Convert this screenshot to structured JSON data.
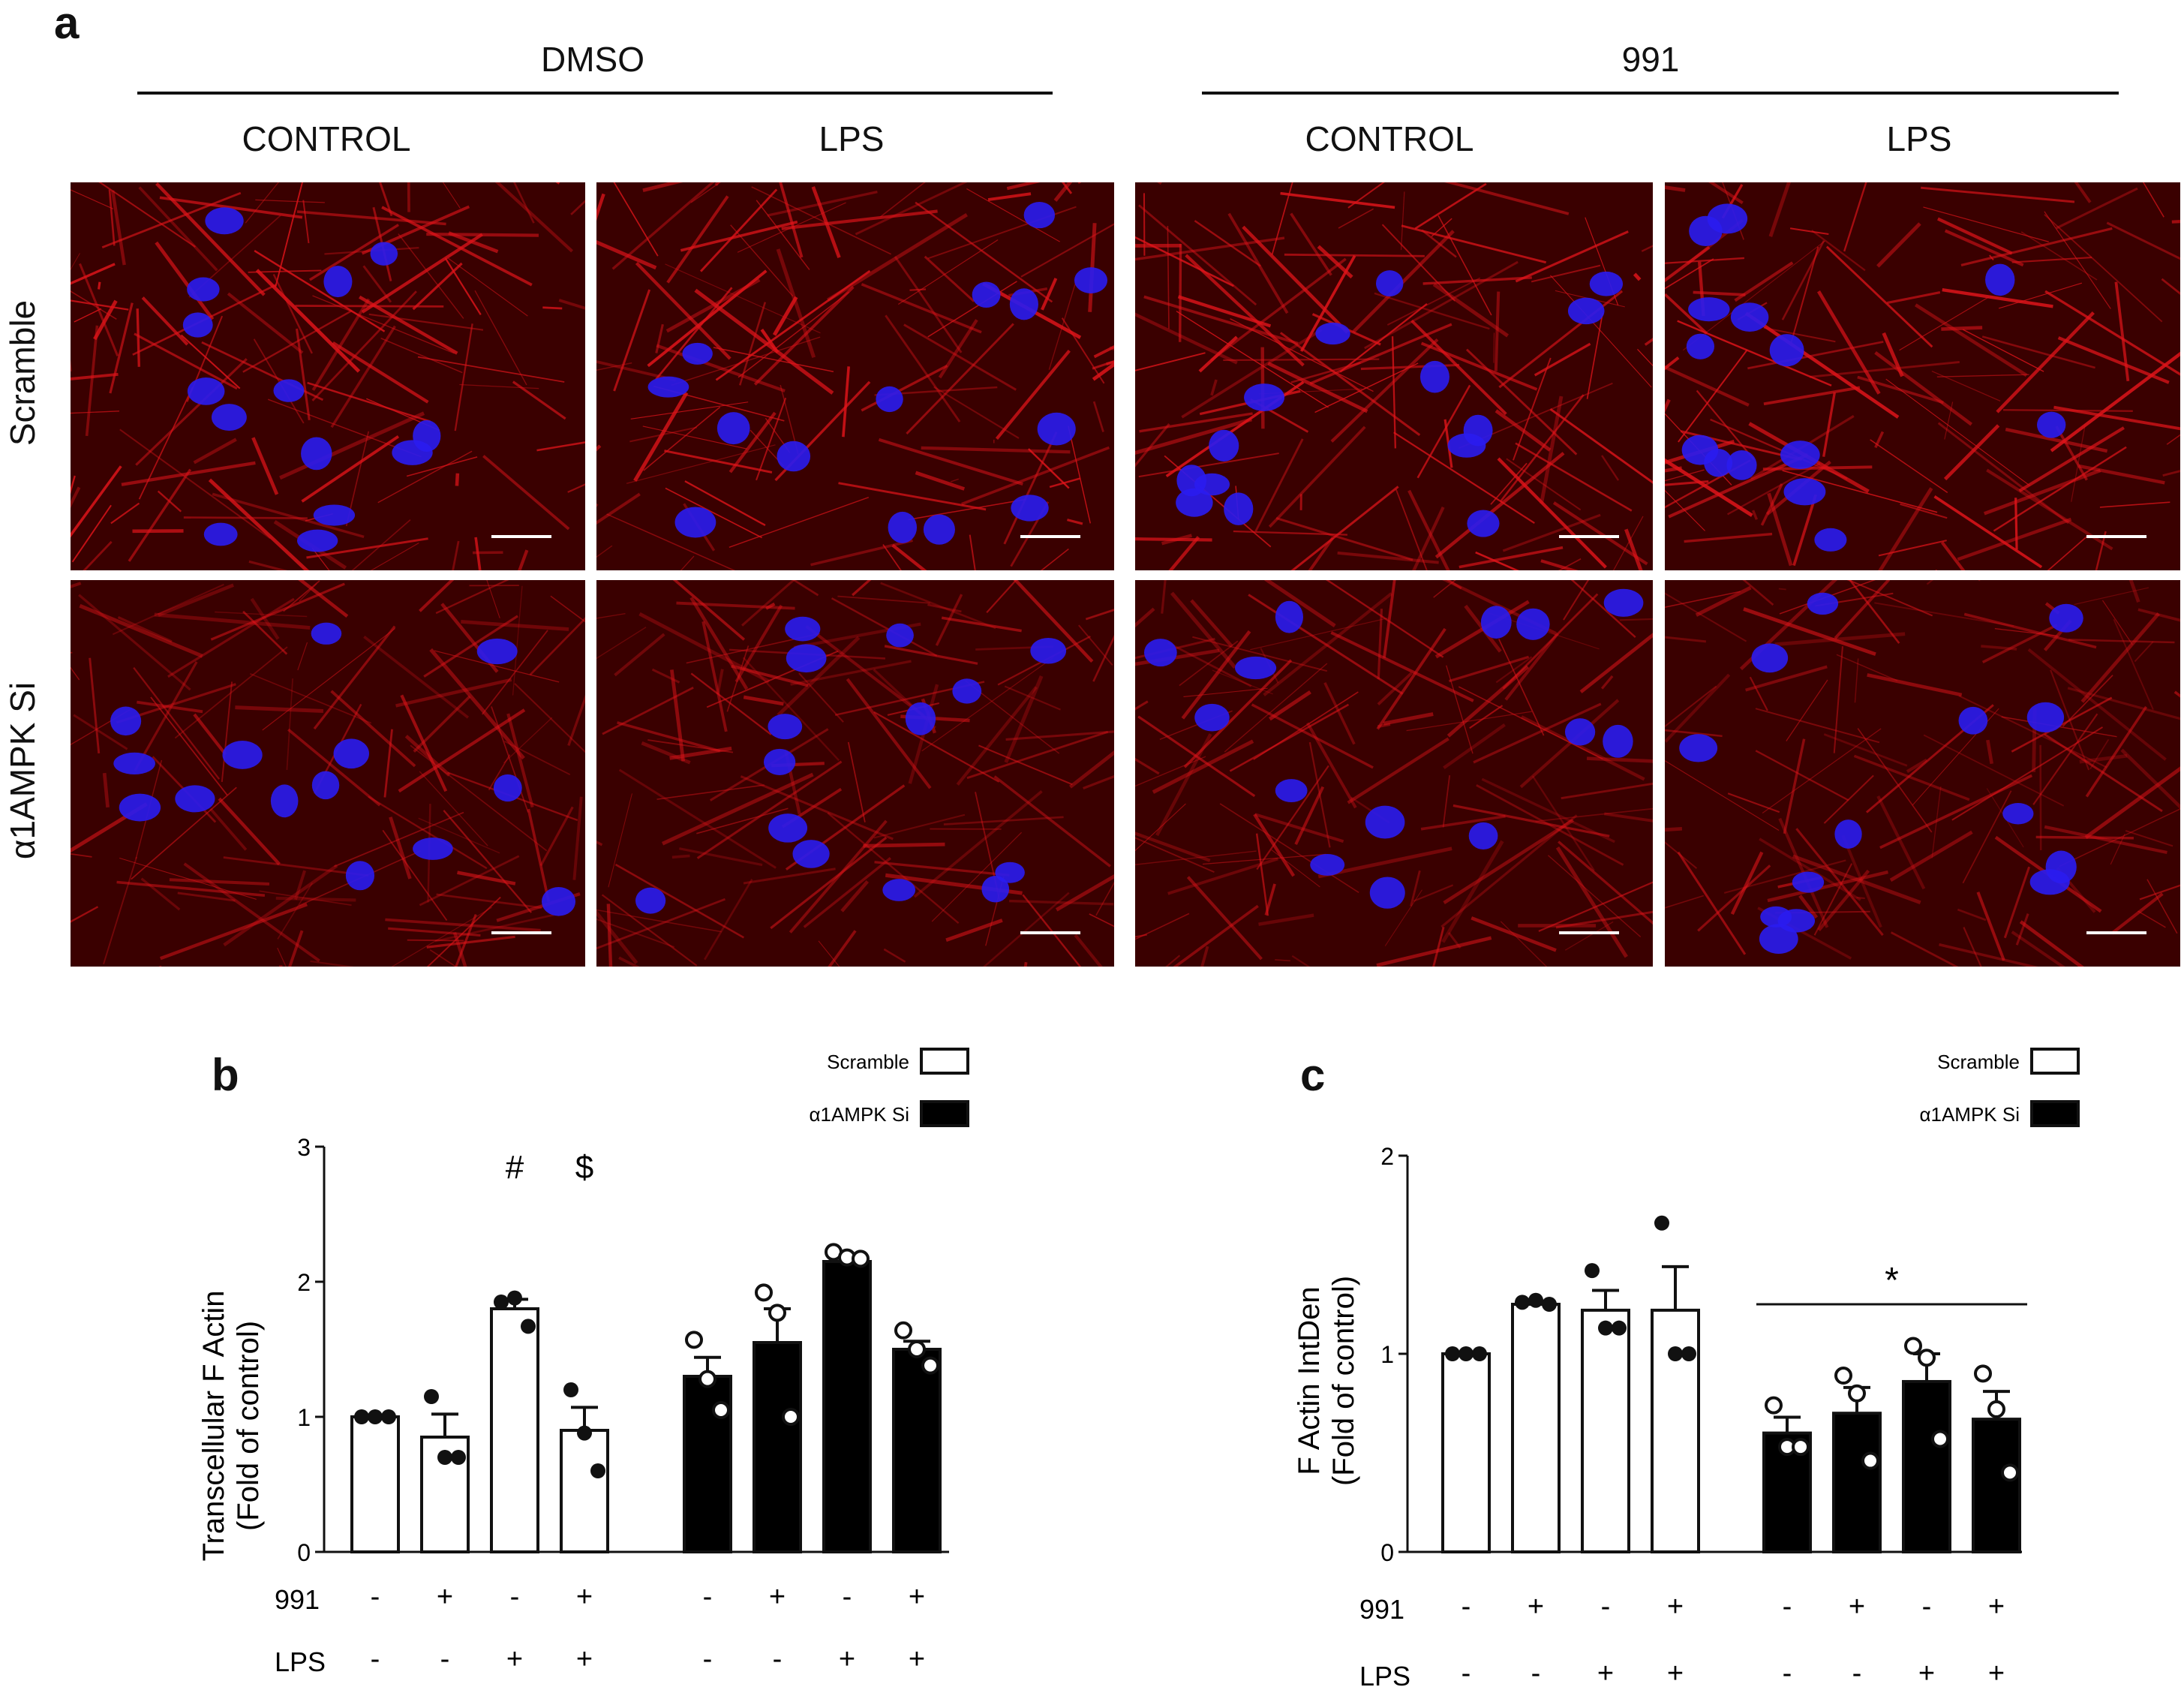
{
  "panel_a": {
    "letter": "a",
    "groups": [
      "DMSO",
      "991"
    ],
    "conditions": [
      "CONTROL",
      "LPS",
      "CONTROL",
      "LPS"
    ],
    "rows": [
      "Scramble",
      "α1AMPK Si"
    ],
    "colors": {
      "actin": "#e0141a",
      "nuclei": "#2a1cf0",
      "background": "#3a0000"
    }
  },
  "chart_data": [
    {
      "panel": "b",
      "type": "bar",
      "ylabel": "Transcellular F Actin\n(Fold of control)",
      "ylim": [
        0,
        3
      ],
      "yticks": [
        0,
        1,
        2,
        3
      ],
      "legend": [
        {
          "name": "Scramble",
          "fill": "#ffffff"
        },
        {
          "name": "α1AMPK Si",
          "fill": "#000000"
        }
      ],
      "legend_position": "top-right",
      "row_labels": [
        "991",
        "LPS"
      ],
      "series": [
        {
          "name": "Scramble",
          "fill": "#ffffff",
          "bars": [
            {
              "value": 1.0,
              "sem": 0.0,
              "points": [
                1.0,
                1.0,
                1.0
              ],
              "991": "-",
              "LPS": "-",
              "annotation": ""
            },
            {
              "value": 0.85,
              "sem": 0.17,
              "points": [
                1.15,
                0.7,
                0.7
              ],
              "991": "+",
              "LPS": "-",
              "annotation": ""
            },
            {
              "value": 1.8,
              "sem": 0.07,
              "points": [
                1.85,
                1.88,
                1.67
              ],
              "991": "-",
              "LPS": "+",
              "annotation": "#"
            },
            {
              "value": 0.9,
              "sem": 0.17,
              "points": [
                1.2,
                0.88,
                0.6
              ],
              "991": "+",
              "LPS": "+",
              "annotation": "$"
            }
          ]
        },
        {
          "name": "α1AMPK Si",
          "fill": "#000000",
          "bars": [
            {
              "value": 1.3,
              "sem": 0.14,
              "points": [
                1.57,
                1.28,
                1.05
              ],
              "991": "-",
              "LPS": "-",
              "annotation": ""
            },
            {
              "value": 1.55,
              "sem": 0.25,
              "points": [
                1.92,
                1.77,
                1.0
              ],
              "991": "+",
              "LPS": "-",
              "annotation": ""
            },
            {
              "value": 2.15,
              "sem": 0.04,
              "points": [
                2.22,
                2.18,
                2.17
              ],
              "991": "-",
              "LPS": "+",
              "annotation": ""
            },
            {
              "value": 1.5,
              "sem": 0.06,
              "points": [
                1.64,
                1.5,
                1.38
              ],
              "991": "+",
              "LPS": "+",
              "annotation": ""
            }
          ]
        }
      ]
    },
    {
      "panel": "c",
      "type": "bar",
      "ylabel": "F Actin IntDen\n(Fold of control)",
      "ylim": [
        0,
        2
      ],
      "yticks": [
        0,
        1,
        2
      ],
      "legend": [
        {
          "name": "Scramble",
          "fill": "#ffffff"
        },
        {
          "name": "α1AMPK Si",
          "fill": "#000000"
        }
      ],
      "legend_position": "top-right",
      "row_labels": [
        "991",
        "LPS"
      ],
      "significance": {
        "label": "*",
        "span": "α1AMPK Si"
      },
      "series": [
        {
          "name": "Scramble",
          "fill": "#ffffff",
          "bars": [
            {
              "value": 1.0,
              "sem": 0.0,
              "points": [
                1.0,
                1.0,
                1.0
              ],
              "991": "-",
              "LPS": "-"
            },
            {
              "value": 1.25,
              "sem": 0.01,
              "points": [
                1.26,
                1.27,
                1.25
              ],
              "991": "+",
              "LPS": "-"
            },
            {
              "value": 1.22,
              "sem": 0.1,
              "points": [
                1.42,
                1.13,
                1.13
              ],
              "991": "-",
              "LPS": "+"
            },
            {
              "value": 1.22,
              "sem": 0.22,
              "points": [
                1.66,
                1.0,
                1.0
              ],
              "991": "+",
              "LPS": "+"
            }
          ]
        },
        {
          "name": "α1AMPK Si",
          "fill": "#000000",
          "bars": [
            {
              "value": 0.6,
              "sem": 0.08,
              "points": [
                0.74,
                0.53,
                0.53
              ],
              "991": "-",
              "LPS": "-"
            },
            {
              "value": 0.7,
              "sem": 0.13,
              "points": [
                0.89,
                0.8,
                0.46
              ],
              "991": "+",
              "LPS": "-"
            },
            {
              "value": 0.86,
              "sem": 0.14,
              "points": [
                1.04,
                0.98,
                0.57
              ],
              "991": "-",
              "LPS": "+"
            },
            {
              "value": 0.67,
              "sem": 0.14,
              "points": [
                0.9,
                0.72,
                0.4
              ],
              "991": "+",
              "LPS": "+"
            }
          ]
        }
      ]
    }
  ]
}
